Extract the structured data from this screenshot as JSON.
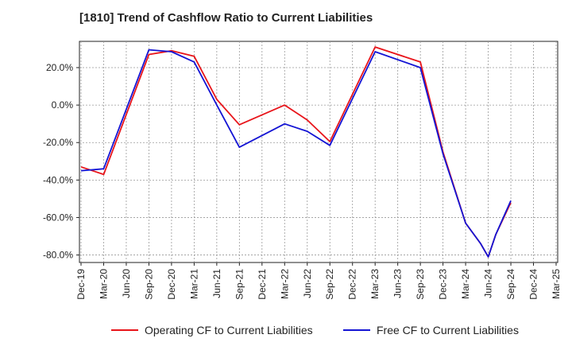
{
  "chart_data": {
    "type": "line",
    "title": "[1810]  Trend of Cashflow Ratio to Current Liabilities",
    "xlabel": "",
    "ylabel": "",
    "grid": true,
    "legend_placement": "bottom",
    "x_ticks": [
      "Dec-19",
      "Mar-20",
      "Jun-20",
      "Sep-20",
      "Dec-20",
      "Mar-21",
      "Jun-21",
      "Sep-21",
      "Dec-21",
      "Mar-22",
      "Jun-22",
      "Sep-22",
      "Dec-22",
      "Mar-23",
      "Jun-23",
      "Sep-23",
      "Dec-23",
      "Mar-24",
      "Jun-24",
      "Sep-24",
      "Dec-24",
      "Mar-25"
    ],
    "y_ticks": [
      20,
      0,
      -20,
      -40,
      -60,
      -80
    ],
    "y_tick_labels": [
      "20.0%",
      "0.0%",
      "-20.0%",
      "-40.0%",
      "-60.0%",
      "-80.0%"
    ],
    "ylim": [
      -84,
      34
    ],
    "series": [
      {
        "name": "Operating CF to Current Liabilities",
        "color": "#e8141a",
        "points": [
          [
            "Dec-19",
            -33
          ],
          [
            "Mar-20",
            -37
          ],
          [
            "Sep-20",
            27
          ],
          [
            "Dec-20",
            29
          ],
          [
            "Mar-21",
            26
          ],
          [
            "Jun-21",
            3
          ],
          [
            "Sep-21",
            -10.5
          ],
          [
            "Mar-22",
            0
          ],
          [
            "Jun-22",
            -8
          ],
          [
            "Sep-22",
            -19.5
          ],
          [
            "Mar-23",
            31
          ],
          [
            "Sep-23",
            23
          ],
          [
            "Dec-23",
            -25
          ],
          [
            "Mar-24",
            -63
          ],
          [
            "May-24",
            -74
          ],
          [
            "Jun-24",
            -81
          ],
          [
            "Jul-24",
            -69
          ],
          [
            "Sep-24",
            -52
          ]
        ]
      },
      {
        "name": "Free CF to Current Liabilities",
        "color": "#1414d4",
        "points": [
          [
            "Dec-19",
            -35
          ],
          [
            "Mar-20",
            -34
          ],
          [
            "Sep-20",
            29.5
          ],
          [
            "Dec-20",
            28.5
          ],
          [
            "Mar-21",
            23
          ],
          [
            "Jun-21",
            0
          ],
          [
            "Sep-21",
            -22.5
          ],
          [
            "Mar-22",
            -10
          ],
          [
            "Jun-22",
            -14
          ],
          [
            "Sep-22",
            -21.5
          ],
          [
            "Mar-23",
            28.5
          ],
          [
            "Sep-23",
            20
          ],
          [
            "Dec-23",
            -26
          ],
          [
            "Mar-24",
            -63
          ],
          [
            "May-24",
            -74
          ],
          [
            "Jun-24",
            -81
          ],
          [
            "Jul-24",
            -69
          ],
          [
            "Sep-24",
            -51
          ]
        ]
      }
    ]
  }
}
